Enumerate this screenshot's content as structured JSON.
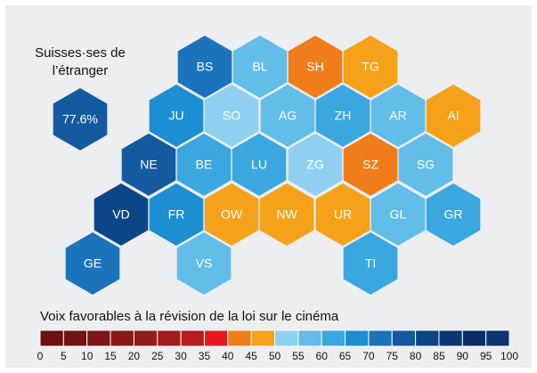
{
  "chart_data": {
    "type": "hexmap",
    "abroad_title": [
      "Suisses·ses de",
      "l’étranger"
    ],
    "abroad": {
      "value": 77.6,
      "value_label": "77.6%"
    },
    "categories": [
      "BS",
      "BL",
      "SH",
      "TG",
      "JU",
      "SO",
      "AG",
      "ZH",
      "AR",
      "AI",
      "NE",
      "BE",
      "LU",
      "ZG",
      "SZ",
      "SG",
      "VD",
      "FR",
      "OW",
      "NW",
      "UR",
      "GL",
      "GR",
      "GE",
      "VS",
      "TI"
    ],
    "values": [
      72,
      58,
      42,
      47,
      67,
      53,
      57,
      62,
      57,
      47,
      77,
      60,
      62,
      53,
      42,
      57,
      82,
      68,
      47,
      47,
      47,
      57,
      62,
      73,
      57,
      60
    ],
    "legend": {
      "title": "Voix favorables à la révision de la loi sur le cinéma",
      "bins": [
        0,
        5,
        10,
        15,
        20,
        25,
        30,
        35,
        40,
        45,
        50,
        55,
        60,
        65,
        70,
        75,
        80,
        85,
        90,
        95,
        100
      ],
      "colors": [
        "#6b1212",
        "#741414",
        "#7f1616",
        "#8a1818",
        "#951a1a",
        "#a21c1c",
        "#b81d1f",
        "#e8191e",
        "#f07d1a",
        "#f5a11a",
        "#8fd0f0",
        "#62bde9",
        "#3ba7df",
        "#1c8ed1",
        "#1b74bb",
        "#145aa0",
        "#0d4686",
        "#0b3875",
        "#0a2e64",
        "#0c3670"
      ]
    }
  }
}
